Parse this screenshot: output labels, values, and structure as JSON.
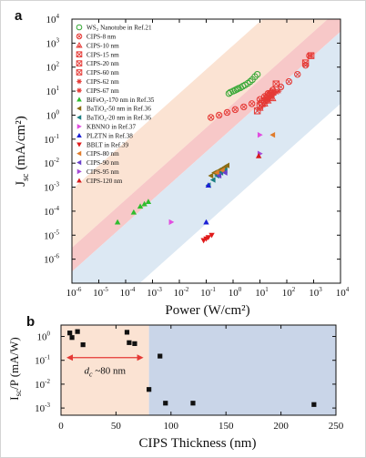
{
  "chart_data": [
    {
      "type": "scatter",
      "panel_label": "a",
      "xlabel": "Power (W/cm²)",
      "ylabel": "Jsc (mA/cm²)",
      "x_scale": "log",
      "y_scale": "log",
      "xlim": [
        1e-06,
        10000.0
      ],
      "ylim": [
        1e-07,
        10000.0
      ],
      "grid": false,
      "legend_position": "top-left",
      "x_ticks": [
        {
          "base": "10",
          "exp": "-6"
        },
        {
          "base": "10",
          "exp": "-5"
        },
        {
          "base": "10",
          "exp": "-4"
        },
        {
          "base": "10",
          "exp": "-3"
        },
        {
          "base": "10",
          "exp": "-2"
        },
        {
          "base": "10",
          "exp": "-1"
        },
        {
          "base": "10",
          "exp": "0"
        },
        {
          "base": "10",
          "exp": "1"
        },
        {
          "base": "10",
          "exp": "2"
        },
        {
          "base": "10",
          "exp": "3"
        },
        {
          "base": "10",
          "exp": "4"
        }
      ],
      "y_ticks": [
        {
          "base": "10",
          "exp": "-6"
        },
        {
          "base": "10",
          "exp": "-5"
        },
        {
          "base": "10",
          "exp": "-4"
        },
        {
          "base": "10",
          "exp": "-3"
        },
        {
          "base": "10",
          "exp": "-2"
        },
        {
          "base": "10",
          "exp": "-1"
        },
        {
          "base": "10",
          "exp": "0"
        },
        {
          "base": "10",
          "exp": "1"
        },
        {
          "base": "10",
          "exp": "2"
        },
        {
          "base": "10",
          "exp": "3"
        },
        {
          "base": "10",
          "exp": "4"
        }
      ],
      "bands": [
        {
          "color": "#fbe3d3",
          "lower_at_xmin": 3e-06,
          "upper_at_xmin": 0.0008,
          "slope": 1.0
        },
        {
          "color": "#f7c8c8",
          "lower_at_xmin": 3e-07,
          "upper_at_xmin": 3e-06,
          "slope": 1.0
        },
        {
          "color": "#dce8f3",
          "lower_at_xmin": 3e-10,
          "upper_at_xmin": 3e-07,
          "slope": 1.0
        }
      ],
      "series": [
        {
          "name": "WS₂ Nanotube in Ref.21",
          "color": "#35a835",
          "marker": "circle-open",
          "x": [
            0.7,
            0.8,
            1.0,
            1.2,
            1.4,
            1.6,
            1.9,
            2.3,
            2.8,
            3.5,
            4.3,
            5.2,
            6.5,
            8.0
          ],
          "y": [
            8,
            9,
            10,
            11,
            12,
            13,
            14,
            16,
            18,
            21,
            25,
            30,
            40,
            50
          ]
        },
        {
          "name": "CIPS-8 nm",
          "color": "#e53935",
          "marker": "circle-x",
          "x": [
            0.15,
            0.3,
            0.6,
            1.2,
            2.5,
            5,
            10,
            15,
            20,
            30,
            60,
            120,
            250,
            500,
            700
          ],
          "y": [
            0.8,
            1.0,
            1.3,
            1.7,
            2.2,
            3.0,
            4.5,
            6,
            8,
            11,
            15,
            25,
            50,
            120,
            300
          ]
        },
        {
          "name": "CIPS-10 nm",
          "color": "#e53935",
          "marker": "triangle-x",
          "x": [
            10,
            15,
            20,
            30
          ],
          "y": [
            2.0,
            3.0,
            4.0,
            5.0
          ]
        },
        {
          "name": "CIPS-15 nm",
          "color": "#e53935",
          "marker": "square-x",
          "x": [
            8,
            12,
            18,
            25,
            40,
            500,
            800
          ],
          "y": [
            1.5,
            3.0,
            5.0,
            8.0,
            20,
            150,
            300
          ]
        },
        {
          "name": "CIPS-20 nm",
          "color": "#e53935",
          "marker": "square-x",
          "x": [
            10,
            15,
            20,
            30
          ],
          "y": [
            2.5,
            4.0,
            6.0,
            9.0
          ]
        },
        {
          "name": "CIPS-60 nm",
          "color": "#e53935",
          "marker": "square-x",
          "x": [
            12,
            18,
            25
          ],
          "y": [
            3.0,
            5.0,
            7.0
          ]
        },
        {
          "name": "CIPS-62 nm",
          "color": "#e53935",
          "marker": "star",
          "x": [
            15,
            25,
            40
          ],
          "y": [
            4.0,
            6.0,
            9.0
          ]
        },
        {
          "name": "CIPS-67 nm",
          "color": "#e53935",
          "marker": "star",
          "x": [
            20,
            30,
            50
          ],
          "y": [
            5.0,
            7.0,
            10
          ]
        },
        {
          "name": "BiFeO₃-170 nm in Ref.35",
          "color": "#2ebd2e",
          "marker": "triangle-up",
          "x": [
            5e-05,
            0.0002,
            0.00035,
            0.0005,
            0.0007
          ],
          "y": [
            3.5e-05,
            9e-05,
            0.00016,
            0.0002,
            0.00025
          ]
        },
        {
          "name": "BaTiO₃-50 nm in Ref.36",
          "color": "#8a6d14",
          "marker": "triangle-left",
          "x": [
            0.15,
            0.2,
            0.3,
            0.4,
            0.5,
            0.6
          ],
          "y": [
            0.003,
            0.004,
            0.005,
            0.006,
            0.007,
            0.008
          ]
        },
        {
          "name": "BaTiO₃-20 nm in Ref.36",
          "color": "#1a7f82",
          "marker": "triangle-left",
          "x": [
            0.12,
            0.18,
            0.25,
            0.35,
            0.5
          ],
          "y": [
            0.0012,
            0.002,
            0.003,
            0.004,
            0.005
          ]
        },
        {
          "name": "KBNNO in Ref.37",
          "color": "#e14de0",
          "marker": "triangle-right",
          "x": [
            0.005,
            10
          ],
          "y": [
            3.5e-05,
            0.15
          ]
        },
        {
          "name": "PLZTN in Ref.38",
          "color": "#1a1fd6",
          "marker": "triangle-up",
          "x": [
            0.1,
            0.12
          ],
          "y": [
            3.5e-05,
            0.0012
          ]
        },
        {
          "name": "BBLT in Ref.39",
          "color": "#e01a1a",
          "marker": "triangle-down",
          "x": [
            0.08,
            0.1,
            0.12,
            0.16
          ],
          "y": [
            6e-06,
            7e-06,
            8e-06,
            1e-05
          ]
        },
        {
          "name": "CIPS-80 nm",
          "color": "#e07b2a",
          "marker": "triangle-left",
          "x": [
            0.25,
            0.4,
            30
          ],
          "y": [
            0.004,
            0.005,
            0.15
          ]
        },
        {
          "name": "CIPS-90 nm",
          "color": "#6a3fc9",
          "marker": "triangle-left",
          "x": [
            0.3,
            0.5
          ],
          "y": [
            0.003,
            0.004
          ]
        },
        {
          "name": "CIPS-95 nm",
          "color": "#a64ad6",
          "marker": "triangle-right",
          "x": [
            10
          ],
          "y": [
            0.025
          ]
        },
        {
          "name": "CIPS-120 nm",
          "color": "#d81b1b",
          "marker": "triangle-up",
          "x": [
            9
          ],
          "y": [
            0.02
          ]
        }
      ]
    },
    {
      "type": "scatter",
      "panel_label": "b",
      "xlabel": "CIPS Thickness (nm)",
      "ylabel": "Isc/P (mA/W)",
      "x_scale": "linear",
      "y_scale": "log",
      "xlim": [
        0,
        250
      ],
      "ylim": [
        0.0005,
        3
      ],
      "grid": false,
      "x_ticks": [
        "0",
        "50",
        "100",
        "150",
        "200",
        "250"
      ],
      "y_ticks": [
        {
          "base": "10",
          "exp": "0"
        },
        {
          "base": "10",
          "exp": "-1"
        },
        {
          "base": "10",
          "exp": "-2"
        },
        {
          "base": "10",
          "exp": "-3"
        }
      ],
      "regions": [
        {
          "from": 0,
          "to": 80,
          "color": "#fbe3d3"
        },
        {
          "from": 80,
          "to": 250,
          "color": "#c9d5e8"
        }
      ],
      "annotation": {
        "text": "dc ~80 nm",
        "arrow_from": 5,
        "arrow_to": 75,
        "y": 0.13,
        "color": "#e53935"
      },
      "series": [
        {
          "name": "",
          "color": "#111111",
          "marker": "square",
          "x": [
            8,
            10,
            15,
            20,
            60,
            62,
            67,
            80,
            90,
            95,
            120,
            230
          ],
          "y": [
            1.4,
            0.9,
            1.6,
            0.45,
            1.5,
            0.55,
            0.5,
            0.006,
            0.15,
            0.0016,
            0.0016,
            0.0014
          ]
        }
      ]
    }
  ]
}
